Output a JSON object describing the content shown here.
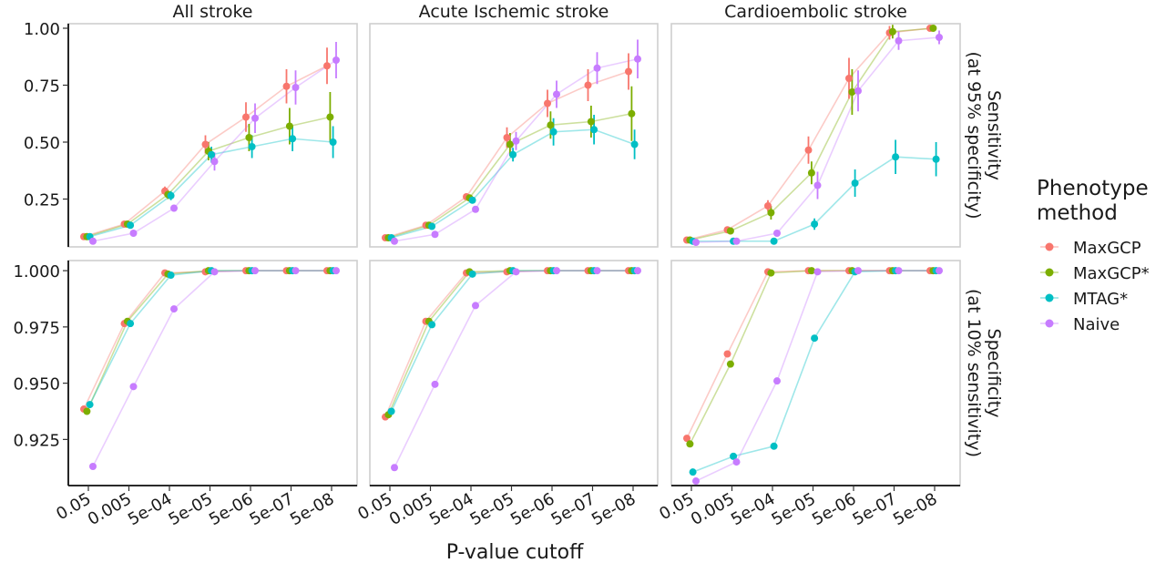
{
  "chart_data": {
    "type": "line",
    "xlabel": "P-value cutoff",
    "x_categories": [
      "0.05",
      "0.005",
      "5e-04",
      "5e-05",
      "5e-06",
      "5e-07",
      "5e-08"
    ],
    "facet_columns": [
      "All stroke",
      "Acute Ischemic stroke",
      "Cardioembolic stroke"
    ],
    "facet_rows": [
      {
        "strip_label_line1": "Sensitivity",
        "strip_label_line2": "(at 95% specificity)",
        "ylim": [
          0.04,
          1.02
        ],
        "yticks": [
          "0.25",
          "0.50",
          "0.75",
          "1.00"
        ],
        "ytick_values": [
          0.25,
          0.5,
          0.75,
          1.0
        ]
      },
      {
        "strip_label_line1": "Specificity",
        "strip_label_line2": "(at 10% sensitivity)",
        "ylim": [
          0.9045,
          1.0045
        ],
        "yticks": [
          "0.925",
          "0.950",
          "0.975",
          "1.000"
        ],
        "ytick_values": [
          0.925,
          0.95,
          0.975,
          1.0
        ]
      }
    ],
    "legend": {
      "title_line1": "Phenotype",
      "title_line2": "method",
      "position": "right",
      "entries": [
        {
          "name": "MaxGCP",
          "color": "#f8766d"
        },
        {
          "name": "MaxGCP*",
          "color": "#7cae00"
        },
        {
          "name": "MTAG*",
          "color": "#00bfc4"
        },
        {
          "name": "Naive",
          "color": "#c77cff"
        }
      ]
    },
    "panels": [
      {
        "row": 0,
        "col": 0,
        "series": [
          {
            "name": "MaxGCP",
            "values": [
              0.085,
              0.14,
              0.285,
              0.49,
              0.61,
              0.745,
              0.835
            ],
            "err": [
              0.005,
              0.008,
              0.02,
              0.04,
              0.065,
              0.075,
              0.08
            ]
          },
          {
            "name": "MaxGCP*",
            "values": [
              0.085,
              0.14,
              0.27,
              0.46,
              0.52,
              0.57,
              0.61
            ],
            "err": [
              0.005,
              0.008,
              0.02,
              0.04,
              0.06,
              0.08,
              0.11
            ]
          },
          {
            "name": "MTAG*",
            "values": [
              0.085,
              0.135,
              0.265,
              0.445,
              0.48,
              0.515,
              0.5
            ],
            "err": [
              0.005,
              0.008,
              0.02,
              0.035,
              0.05,
              0.055,
              0.07
            ]
          },
          {
            "name": "Naive",
            "values": [
              0.065,
              0.1,
              0.21,
              0.415,
              0.605,
              0.74,
              0.86
            ],
            "err": [
              0.005,
              0.008,
              0.015,
              0.04,
              0.065,
              0.075,
              0.08
            ]
          }
        ]
      },
      {
        "row": 0,
        "col": 1,
        "series": [
          {
            "name": "MaxGCP",
            "values": [
              0.08,
              0.135,
              0.26,
              0.52,
              0.67,
              0.75,
              0.81
            ],
            "err": [
              0.005,
              0.008,
              0.015,
              0.045,
              0.06,
              0.07,
              0.08
            ]
          },
          {
            "name": "MaxGCP*",
            "values": [
              0.08,
              0.135,
              0.255,
              0.49,
              0.575,
              0.59,
              0.625
            ],
            "err": [
              0.005,
              0.008,
              0.015,
              0.05,
              0.06,
              0.07,
              0.12
            ]
          },
          {
            "name": "MTAG*",
            "values": [
              0.08,
              0.13,
              0.245,
              0.445,
              0.545,
              0.555,
              0.49
            ],
            "err": [
              0.005,
              0.008,
              0.015,
              0.03,
              0.06,
              0.065,
              0.065
            ]
          },
          {
            "name": "Naive",
            "values": [
              0.065,
              0.095,
              0.205,
              0.505,
              0.71,
              0.825,
              0.865
            ],
            "err": [
              0.005,
              0.008,
              0.015,
              0.04,
              0.06,
              0.07,
              0.085
            ]
          }
        ]
      },
      {
        "row": 0,
        "col": 2,
        "series": [
          {
            "name": "MaxGCP",
            "values": [
              0.07,
              0.115,
              0.22,
              0.465,
              0.78,
              0.98,
              1.0
            ],
            "err": [
              0.005,
              0.008,
              0.025,
              0.06,
              0.09,
              0.03,
              0.01
            ]
          },
          {
            "name": "MaxGCP*",
            "values": [
              0.07,
              0.11,
              0.19,
              0.365,
              0.72,
              0.985,
              1.0
            ],
            "err": [
              0.005,
              0.008,
              0.03,
              0.05,
              0.1,
              0.03,
              0.01
            ]
          },
          {
            "name": "MTAG*",
            "values": [
              0.065,
              0.065,
              0.065,
              0.14,
              0.32,
              0.435,
              0.425
            ],
            "err": [
              0.005,
              0.005,
              0.005,
              0.025,
              0.06,
              0.075,
              0.075
            ]
          },
          {
            "name": "Naive",
            "values": [
              0.06,
              0.065,
              0.1,
              0.31,
              0.725,
              0.945,
              0.96
            ],
            "err": [
              0.005,
              0.005,
              0.01,
              0.06,
              0.09,
              0.04,
              0.03
            ]
          }
        ]
      },
      {
        "row": 1,
        "col": 0,
        "series": [
          {
            "name": "MaxGCP",
            "values": [
              0.9385,
              0.9765,
              0.999,
              0.9995,
              1.0,
              1.0,
              1.0
            ]
          },
          {
            "name": "MaxGCP*",
            "values": [
              0.9375,
              0.9775,
              0.9985,
              1.0,
              1.0,
              1.0,
              1.0
            ]
          },
          {
            "name": "MTAG*",
            "values": [
              0.9405,
              0.9765,
              0.998,
              1.0,
              1.0,
              1.0,
              1.0
            ]
          },
          {
            "name": "Naive",
            "values": [
              0.913,
              0.9485,
              0.983,
              0.9995,
              1.0,
              1.0,
              1.0
            ]
          }
        ]
      },
      {
        "row": 1,
        "col": 1,
        "series": [
          {
            "name": "MaxGCP",
            "values": [
              0.935,
              0.9775,
              0.999,
              0.9995,
              1.0,
              1.0,
              1.0
            ]
          },
          {
            "name": "MaxGCP*",
            "values": [
              0.936,
              0.9775,
              0.9995,
              1.0,
              1.0,
              1.0,
              1.0
            ]
          },
          {
            "name": "MTAG*",
            "values": [
              0.9375,
              0.976,
              0.9985,
              1.0,
              1.0,
              1.0,
              1.0
            ]
          },
          {
            "name": "Naive",
            "values": [
              0.9125,
              0.9495,
              0.9845,
              0.9995,
              1.0,
              1.0,
              1.0
            ]
          }
        ]
      },
      {
        "row": 1,
        "col": 2,
        "series": [
          {
            "name": "MaxGCP",
            "values": [
              0.9255,
              0.963,
              0.9995,
              1.0,
              1.0,
              1.0,
              1.0
            ]
          },
          {
            "name": "MaxGCP*",
            "values": [
              0.923,
              0.9585,
              0.999,
              1.0,
              1.0,
              1.0,
              1.0
            ]
          },
          {
            "name": "MTAG*",
            "values": [
              0.9105,
              0.9175,
              0.922,
              0.97,
              0.9995,
              1.0,
              1.0
            ]
          },
          {
            "name": "Naive",
            "values": [
              0.9065,
              0.915,
              0.951,
              0.9995,
              1.0,
              1.0,
              1.0
            ]
          }
        ]
      }
    ]
  }
}
